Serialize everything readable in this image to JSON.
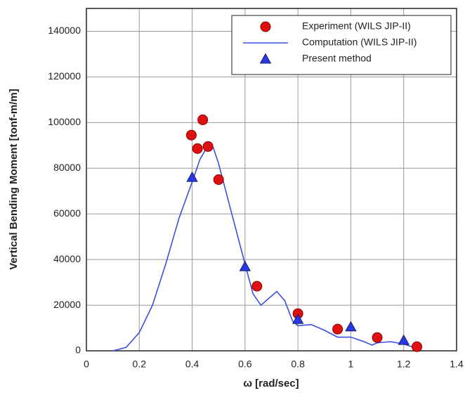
{
  "chart_data": {
    "type": "scatter",
    "xlabel": "ω [rad/sec]",
    "ylabel": "Vertical Bending Moment [tonf-m/m]",
    "xlim": [
      0,
      1.4
    ],
    "xticks": [
      0,
      0.2,
      0.4,
      0.6,
      0.8,
      1,
      1.2,
      1.4
    ],
    "ylim": [
      0,
      150000
    ],
    "yticks": [
      0,
      20000,
      40000,
      60000,
      80000,
      100000,
      120000,
      140000
    ],
    "grid": true,
    "legend": "upper right",
    "series": [
      {
        "name": "Experiment (WILS JIP-II)",
        "mark": "circle",
        "color": "#e01010",
        "x": [
          0.397,
          0.42,
          0.44,
          0.46,
          0.5,
          0.645,
          0.8,
          0.95,
          1.1,
          1.25
        ],
        "values": [
          94500,
          88600,
          101200,
          89500,
          75000,
          28300,
          16300,
          9500,
          5800,
          1800
        ]
      },
      {
        "name": "Computation (WILS JIP-II)",
        "mark": "line",
        "color": "#3a4ee0",
        "x": [
          0.1,
          0.15,
          0.2,
          0.25,
          0.3,
          0.35,
          0.4,
          0.43,
          0.46,
          0.48,
          0.5,
          0.55,
          0.6,
          0.63,
          0.66,
          0.7,
          0.72,
          0.75,
          0.78,
          0.8,
          0.85,
          0.9,
          0.95,
          1.0,
          1.05,
          1.08,
          1.1,
          1.15,
          1.2,
          1.25
        ],
        "values": [
          0,
          1500,
          8000,
          20000,
          38000,
          58000,
          74000,
          84000,
          90000,
          89000,
          82000,
          60000,
          38000,
          25000,
          20000,
          24000,
          26000,
          22000,
          13000,
          11000,
          11500,
          9000,
          6000,
          6000,
          4000,
          2500,
          3500,
          4000,
          3000,
          1000
        ]
      },
      {
        "name": "Present method",
        "mark": "triangle",
        "color": "#2838e8",
        "x": [
          0.4,
          0.6,
          0.8,
          1.0,
          1.2
        ],
        "values": [
          76000,
          36900,
          13800,
          10500,
          4600
        ]
      }
    ]
  }
}
